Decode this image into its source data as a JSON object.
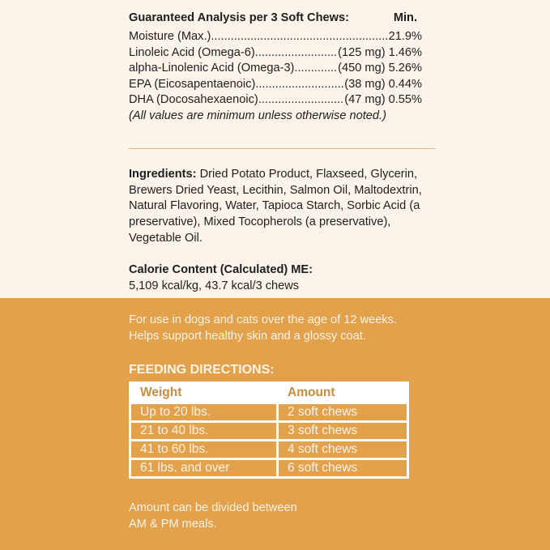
{
  "analysis": {
    "title": "Guaranteed Analysis per 3 Soft Chews:",
    "min_label": "Min.",
    "rows": [
      {
        "label": "Moisture (Max.) ",
        "value": " 21.9%"
      },
      {
        "label": "Linoleic Acid (Omega-6)",
        "value": "(125 mg) 1.46%"
      },
      {
        "label": "alpha-Linolenic Acid (Omega-3)",
        "value": "(450 mg) 5.26%"
      },
      {
        "label": "EPA (Eicosapentaenoic) ",
        "value": "(38 mg) 0.44%"
      },
      {
        "label": "DHA (Docosahexaenoic)",
        "value": "(47 mg) 0.55%"
      }
    ],
    "note": "(All values are minimum unless otherwise noted.)"
  },
  "ingredients": {
    "label": "Ingredients:",
    "text": " Dried Potato Product, Flaxseed, Glycerin, Brewers Dried Yeast, Lecithin, Salmon Oil, Maltodextrin, Natural Flavoring, Water, Tapioca Starch, Sorbic Acid (a preservative), Mixed Tocopherols (a preservative), Vegetable Oil."
  },
  "calorie": {
    "label": "Calorie Content (Calculated) ME:",
    "value": "5,109 kcal/kg, 43.7 kcal/3 chews"
  },
  "usage": {
    "line1": "For use in dogs and cats over the age of 12 weeks.",
    "line2": "Helps support healthy skin and a glossy coat."
  },
  "feeding": {
    "title": "FEEDING DIRECTIONS:",
    "headers": [
      "Weight",
      "Amount"
    ],
    "rows": [
      [
        "Up to 20 lbs.",
        "2 soft chews"
      ],
      [
        "21 to 40 lbs.",
        "3 soft chews"
      ],
      [
        "41 to 60 lbs.",
        "4 soft chews"
      ],
      [
        "61 lbs. and over",
        "6 soft chews"
      ]
    ],
    "note1": "Amount can be divided between",
    "note2": "AM & PM meals."
  },
  "colors": {
    "background": "#fcf4ea",
    "band": "#e4a14b",
    "header_text": "#c98b3c"
  }
}
